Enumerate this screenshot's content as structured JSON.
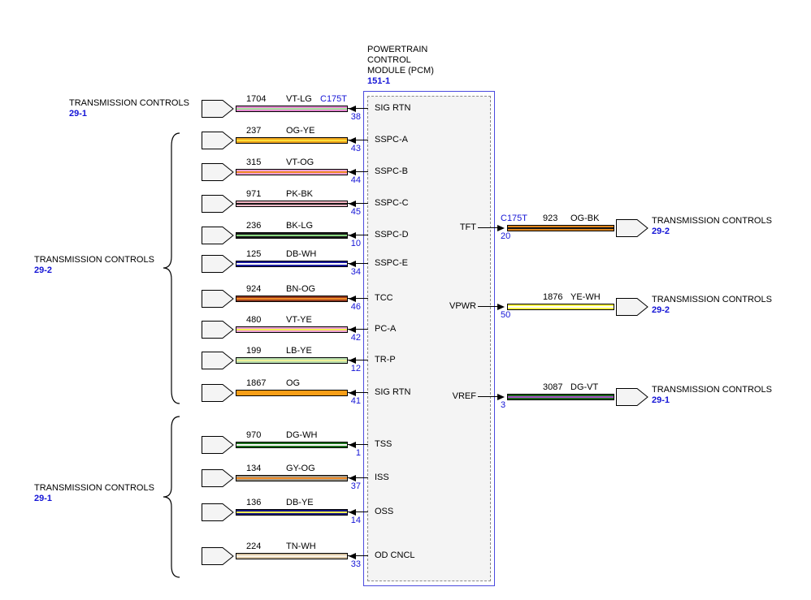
{
  "palette": {
    "accent_blue": "#1414d6",
    "pcm_border_blue": "#4a4ade",
    "module_fill": "#f4f4f4"
  },
  "pcm": {
    "title": [
      "POWERTRAIN",
      "CONTROL",
      "MODULE (PCM)"
    ],
    "ref": "151-1"
  },
  "left_labels": [
    {
      "text": "TRANSMISSION CONTROLS",
      "ref": "29-1"
    },
    {
      "text": "TRANSMISSION CONTROLS",
      "ref": "29-2"
    },
    {
      "text": "TRANSMISSION CONTROLS",
      "ref": "29-1"
    }
  ],
  "left_wires": [
    {
      "circuit": "1704",
      "code": "VT-LG",
      "conn": "C175T",
      "pin": "38",
      "signal": "SIG RTN",
      "main": "#e388cf",
      "stripe": "#a8e4a0"
    },
    {
      "circuit": "237",
      "code": "OG-YE",
      "pin": "43",
      "signal": "SSPC-A",
      "main": "#f0a71e",
      "stripe": "#ffdf3a"
    },
    {
      "circuit": "315",
      "code": "VT-OG",
      "pin": "44",
      "signal": "SSPC-B",
      "main": "#eda0d4",
      "stripe": "#f08c28"
    },
    {
      "circuit": "971",
      "code": "PK-BK",
      "pin": "45",
      "signal": "SSPC-C",
      "main": "#f6b6c5",
      "stripe": "#141414"
    },
    {
      "circuit": "236",
      "code": "BK-LG",
      "pin": "10",
      "signal": "SSPC-D",
      "main": "#181818",
      "stripe": "#86d57e"
    },
    {
      "circuit": "125",
      "code": "DB-WH",
      "pin": "34",
      "signal": "SSPC-E",
      "main": "#1b1b9e",
      "stripe": "#ffffff"
    },
    {
      "circuit": "924",
      "code": "BN-OG",
      "pin": "46",
      "signal": "TCC",
      "main": "#93391c",
      "stripe": "#f08c28"
    },
    {
      "circuit": "480",
      "code": "VT-YE",
      "pin": "42",
      "signal": "PC-A",
      "main": "#eda0d4",
      "stripe": "#f5ee52"
    },
    {
      "circuit": "199",
      "code": "LB-YE",
      "pin": "12",
      "signal": "TR-P",
      "main": "#b8dfae",
      "stripe": "#eff09a"
    },
    {
      "circuit": "1867",
      "code": "OG",
      "pin": "41",
      "signal": "SIG RTN",
      "main": "#f79e17",
      "stripe": "#f79e17"
    },
    {
      "circuit": "970",
      "code": "DG-WH",
      "pin": "1",
      "signal": "TSS",
      "main": "#20701f",
      "stripe": "#ffffff"
    },
    {
      "circuit": "134",
      "code": "GY-OG",
      "pin": "37",
      "signal": "ISS",
      "main": "#a39a89",
      "stripe": "#f08c28"
    },
    {
      "circuit": "136",
      "code": "DB-YE",
      "pin": "14",
      "signal": "OSS",
      "main": "#17177e",
      "stripe": "#f5ee52"
    },
    {
      "circuit": "224",
      "code": "TN-WH",
      "pin": "33",
      "signal": "OD CNCL",
      "main": "#d8c4a3",
      "stripe": "#fdf6ea"
    }
  ],
  "right_wires": [
    {
      "signal": "TFT",
      "conn": "C175T",
      "pin": "20",
      "circuit": "923",
      "code": "OG-BK",
      "main": "#df861d",
      "stripe": "#141414",
      "dest": "TRANSMISSION CONTROLS",
      "ref": "29-2"
    },
    {
      "signal": "VPWR",
      "pin": "50",
      "circuit": "1876",
      "code": "YE-WH",
      "main": "#f6f048",
      "stripe": "#ffffff",
      "dest": "TRANSMISSION CONTROLS",
      "ref": "29-2"
    },
    {
      "signal": "VREF",
      "pin": "3",
      "circuit": "3087",
      "code": "DG-VT",
      "main": "#1c641c",
      "stripe": "#a855c8",
      "dest": "TRANSMISSION CONTROLS",
      "ref": "29-1"
    }
  ]
}
